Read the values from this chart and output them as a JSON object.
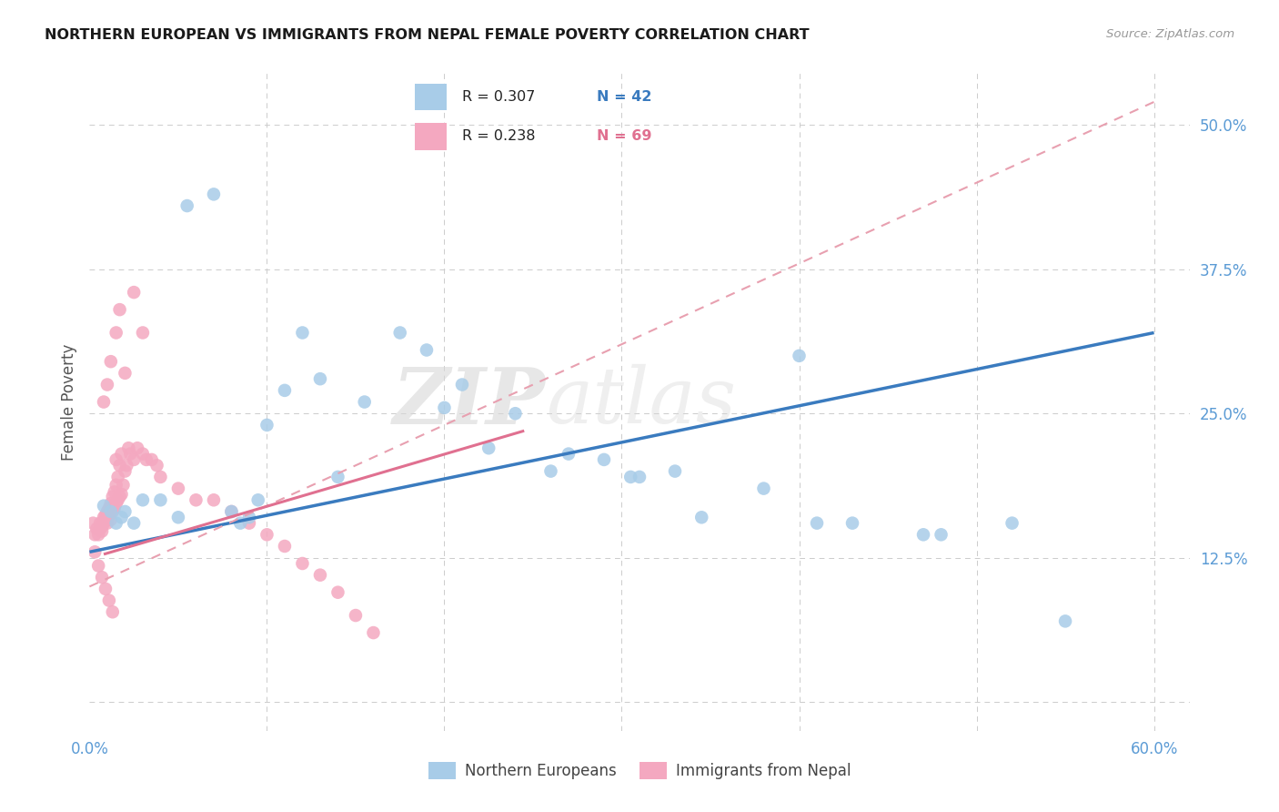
{
  "title": "NORTHERN EUROPEAN VS IMMIGRANTS FROM NEPAL FEMALE POVERTY CORRELATION CHART",
  "source": "Source: ZipAtlas.com",
  "ylabel": "Female Poverty",
  "xlim": [
    0.0,
    0.62
  ],
  "ylim": [
    -0.025,
    0.545
  ],
  "x_ticks": [
    0.0,
    0.1,
    0.2,
    0.3,
    0.4,
    0.5,
    0.6
  ],
  "y_ticks": [
    0.0,
    0.125,
    0.25,
    0.375,
    0.5
  ],
  "y_tick_labels_right": [
    "",
    "12.5%",
    "25.0%",
    "37.5%",
    "50.0%"
  ],
  "R_blue": "0.307",
  "N_blue": "42",
  "R_pink": "0.238",
  "N_pink": "69",
  "blue_color": "#a8cce8",
  "pink_color": "#f4a8c0",
  "blue_line_color": "#3a7bbf",
  "pink_line_color": "#e07090",
  "pink_dash_color": "#e8a0b0",
  "watermark_zip": "ZIP",
  "watermark_atlas": "atlas",
  "legend_labels": [
    "Northern Europeans",
    "Immigrants from Nepal"
  ],
  "blue_x": [
    0.008,
    0.012,
    0.015,
    0.018,
    0.02,
    0.025,
    0.03,
    0.04,
    0.05,
    0.055,
    0.07,
    0.08,
    0.085,
    0.09,
    0.095,
    0.1,
    0.11,
    0.12,
    0.13,
    0.14,
    0.155,
    0.175,
    0.19,
    0.2,
    0.21,
    0.225,
    0.24,
    0.26,
    0.27,
    0.29,
    0.305,
    0.31,
    0.33,
    0.345,
    0.38,
    0.4,
    0.41,
    0.43,
    0.47,
    0.48,
    0.52,
    0.55
  ],
  "blue_y": [
    0.17,
    0.165,
    0.155,
    0.16,
    0.165,
    0.155,
    0.175,
    0.175,
    0.16,
    0.43,
    0.44,
    0.165,
    0.155,
    0.16,
    0.175,
    0.24,
    0.27,
    0.32,
    0.28,
    0.195,
    0.26,
    0.32,
    0.305,
    0.255,
    0.275,
    0.22,
    0.25,
    0.2,
    0.215,
    0.21,
    0.195,
    0.195,
    0.2,
    0.16,
    0.185,
    0.3,
    0.155,
    0.155,
    0.145,
    0.145,
    0.155,
    0.07
  ],
  "pink_x": [
    0.002,
    0.003,
    0.004,
    0.005,
    0.006,
    0.006,
    0.007,
    0.007,
    0.008,
    0.008,
    0.009,
    0.009,
    0.01,
    0.01,
    0.011,
    0.011,
    0.012,
    0.012,
    0.013,
    0.013,
    0.014,
    0.014,
    0.015,
    0.015,
    0.016,
    0.016,
    0.017,
    0.017,
    0.018,
    0.018,
    0.019,
    0.02,
    0.021,
    0.022,
    0.023,
    0.025,
    0.027,
    0.03,
    0.032,
    0.035,
    0.038,
    0.04,
    0.05,
    0.06,
    0.07,
    0.08,
    0.09,
    0.1,
    0.11,
    0.12,
    0.13,
    0.14,
    0.15,
    0.16,
    0.003,
    0.005,
    0.007,
    0.009,
    0.011,
    0.013,
    0.015,
    0.017,
    0.02,
    0.025,
    0.03,
    0.008,
    0.01,
    0.012,
    0.015
  ],
  "pink_y": [
    0.155,
    0.145,
    0.15,
    0.145,
    0.15,
    0.155,
    0.148,
    0.152,
    0.155,
    0.16,
    0.158,
    0.162,
    0.155,
    0.165,
    0.162,
    0.168,
    0.158,
    0.172,
    0.165,
    0.178,
    0.168,
    0.182,
    0.172,
    0.188,
    0.175,
    0.195,
    0.178,
    0.205,
    0.18,
    0.215,
    0.188,
    0.2,
    0.205,
    0.22,
    0.215,
    0.21,
    0.22,
    0.215,
    0.21,
    0.21,
    0.205,
    0.195,
    0.185,
    0.175,
    0.175,
    0.165,
    0.155,
    0.145,
    0.135,
    0.12,
    0.11,
    0.095,
    0.075,
    0.06,
    0.13,
    0.118,
    0.108,
    0.098,
    0.088,
    0.078,
    0.32,
    0.34,
    0.285,
    0.355,
    0.32,
    0.26,
    0.275,
    0.295,
    0.21
  ],
  "blue_trend_x": [
    0.0,
    0.6
  ],
  "blue_trend_y": [
    0.13,
    0.32
  ],
  "pink_trend_x": [
    0.0,
    0.6
  ],
  "pink_trend_y": [
    0.1,
    0.52
  ]
}
